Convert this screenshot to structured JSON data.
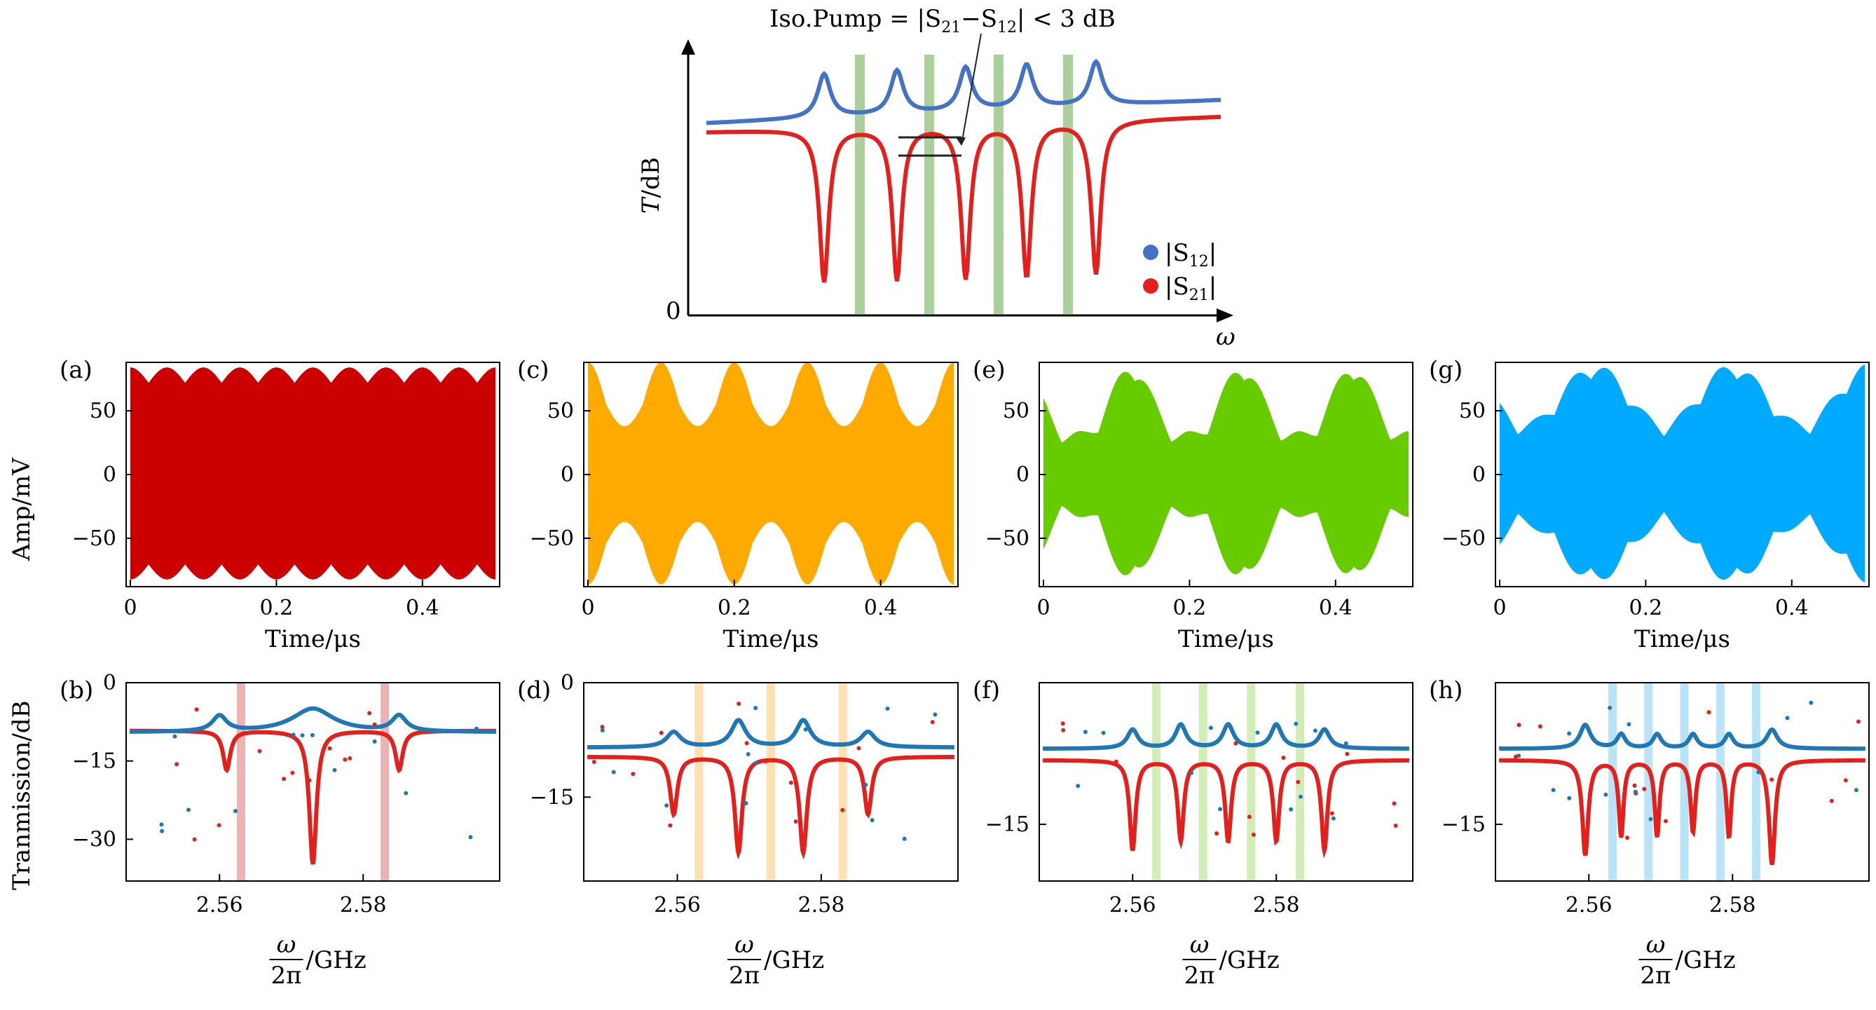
{
  "schematic": {
    "title": "Iso.Pump = |S21−S12| < 3 dB",
    "title_main": "Iso.Pump = |S",
    "title_sub1": "21",
    "title_mid": "−S",
    "title_sub2": "12",
    "title_end": "| < 3 dB",
    "ylabel": "T/dB",
    "ylabel_T": "T",
    "ylabel_rest": "/dB",
    "zero_label": "0",
    "xlabel": "ω",
    "legend": [
      {
        "name": "|S12|",
        "pre": "|S",
        "sub": "12",
        "post": "|",
        "color": "#4472c4"
      },
      {
        "name": "|S21|",
        "pre": "|S",
        "sub": "21",
        "post": "|",
        "color": "#e3201b"
      }
    ],
    "pump_color": "#9cc78a"
  },
  "panels": [
    {
      "id": "a",
      "label": "(a)",
      "color": "#cc0000",
      "mode": 1,
      "xlabel": "Time/μs",
      "ylabel": "Amp/mV",
      "xticks": [
        "0",
        "0.2",
        "0.4"
      ],
      "yticks": [
        "50",
        "0",
        "−50"
      ]
    },
    {
      "id": "c",
      "label": "(c)",
      "color": "#ffaa00",
      "mode": 3,
      "xlabel": "Time/μs",
      "xticks": [
        "0",
        "0.2",
        "0.4"
      ],
      "yticks": [
        "50",
        "0",
        "−50"
      ]
    },
    {
      "id": "e",
      "label": "(e)",
      "color": "#66cc00",
      "mode": 4,
      "xlabel": "Time/μs",
      "xticks": [
        "0",
        "0.2",
        "0.4"
      ],
      "yticks": [
        "50",
        "0",
        "−50"
      ]
    },
    {
      "id": "g",
      "label": "(g)",
      "color": "#00aaff",
      "mode": 5,
      "xlabel": "Time/μs",
      "xticks": [
        "0",
        "0.2",
        "0.4"
      ],
      "yticks": [
        "50",
        "0",
        "−50"
      ]
    }
  ],
  "spectra": [
    {
      "id": "b",
      "label": "(b)",
      "ylabel": "Tranmission/dB",
      "xlabel_num": "ω",
      "xlabel_den": "2π",
      "xlabel_unit": "/GHz",
      "xticks": [
        "2.56",
        "2.58"
      ],
      "yticks": [
        "0",
        "−15",
        "−30"
      ],
      "ylim": [
        -38,
        0
      ],
      "band_color": "#e8a0a0",
      "pumps": [
        2.563,
        2.583
      ]
    },
    {
      "id": "d",
      "label": "(d)",
      "xlabel_num": "ω",
      "xlabel_den": "2π",
      "xlabel_unit": "/GHz",
      "xticks": [
        "2.56",
        "2.58"
      ],
      "yticks": [
        "0",
        "−15"
      ],
      "ylim": [
        -26,
        0
      ],
      "band_color": "#fcd9a0",
      "pumps": [
        2.563,
        2.573,
        2.583
      ]
    },
    {
      "id": "f",
      "label": "(f)",
      "xlabel_num": "ω",
      "xlabel_den": "2π",
      "xlabel_unit": "/GHz",
      "xticks": [
        "2.56",
        "2.58"
      ],
      "yticks": [
        "−15"
      ],
      "ylim": [
        -21,
        0
      ],
      "band_color": "#c8e8a8",
      "pumps": [
        2.5633,
        2.5698,
        2.5765,
        2.5833
      ]
    },
    {
      "id": "h",
      "label": "(h)",
      "xlabel_num": "ω",
      "xlabel_den": "2π",
      "xlabel_unit": "/GHz",
      "xticks": [
        "2.56",
        "2.58"
      ],
      "yticks": [
        "−15"
      ],
      "ylim": [
        -21,
        0
      ],
      "band_color": "#a8dcf5",
      "pumps": [
        2.5633,
        2.5683,
        2.5733,
        2.5783,
        2.5833
      ]
    }
  ],
  "chart_data": {
    "type": "line",
    "title": "Iso.Pump = |S21−S12| < 3 dB",
    "time_axis": {
      "xlabel": "Time/μs",
      "xlim": [
        0,
        0.5
      ],
      "ylabel": "Amp/mV",
      "ylim": [
        -88,
        88
      ]
    },
    "freq_axis": {
      "xlabel": "ω/2π /GHz",
      "xlim": [
        2.547,
        2.599
      ]
    },
    "series": [
      {
        "name": "|S12|",
        "color": "#1f77b4"
      },
      {
        "name": "|S21|",
        "color": "#e3201b"
      }
    ],
    "spectra_resonances": {
      "b": {
        "s21_dips": [
          [
            2.561,
            -17
          ],
          [
            2.573,
            -35
          ],
          [
            2.585,
            -17
          ]
        ],
        "s12_peaks": [
          [
            2.56,
            -6.5
          ],
          [
            2.573,
            -5
          ],
          [
            2.585,
            -6.5
          ]
        ],
        "baseline": -9.5
      },
      "d": {
        "s21_dips": [
          [
            2.5595,
            -16
          ],
          [
            2.5685,
            -21
          ],
          [
            2.5775,
            -21
          ],
          [
            2.5865,
            -16
          ]
        ],
        "s12_peaks": [
          [
            2.5595,
            -6.5
          ],
          [
            2.5685,
            -5
          ],
          [
            2.5775,
            -5
          ],
          [
            2.5865,
            -6.5
          ]
        ],
        "baseline": -8.5
      },
      "f": {
        "s21_dips": [
          [
            2.56,
            -16.5
          ],
          [
            2.5667,
            -15.5
          ],
          [
            2.5733,
            -15.5
          ],
          [
            2.58,
            -15.5
          ],
          [
            2.5867,
            -16.5
          ]
        ],
        "s12_peaks": [
          [
            2.56,
            -5
          ],
          [
            2.5667,
            -4.5
          ],
          [
            2.5733,
            -4.5
          ],
          [
            2.58,
            -4.5
          ],
          [
            2.5867,
            -5
          ]
        ],
        "baseline": -7
      }
    }
  }
}
